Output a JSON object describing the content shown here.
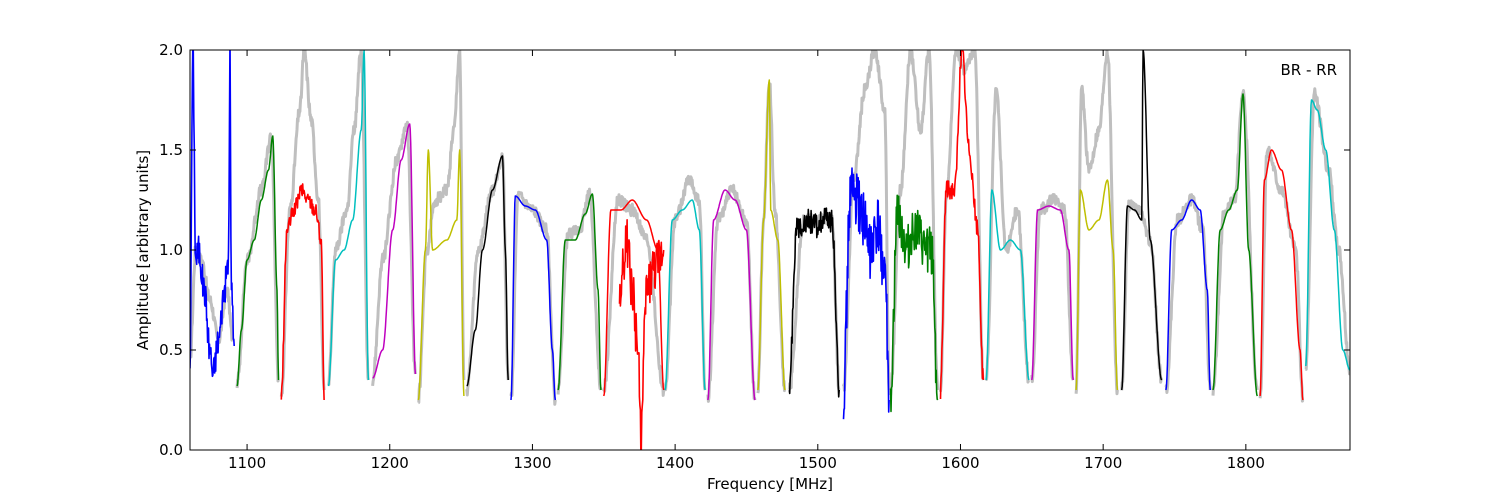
{
  "chart_data": {
    "type": "line",
    "title": "",
    "xlabel": "Frequency [MHz]",
    "ylabel": "Amplitude [arbitrary units]",
    "xlim": [
      1060,
      1873
    ],
    "ylim": [
      0.0,
      2.0
    ],
    "xticks": [
      1100,
      1200,
      1300,
      1400,
      1500,
      1600,
      1700,
      1800
    ],
    "xtick_labels": [
      "1100",
      "1200",
      "1300",
      "1400",
      "1500",
      "1600",
      "1700",
      "1800"
    ],
    "yticks": [
      0.0,
      0.5,
      1.0,
      1.5,
      2.0
    ],
    "ytick_labels": [
      "0.0",
      "0.5",
      "1.0",
      "1.5",
      "2.0"
    ],
    "grid": false,
    "legend_text": "BR - RR",
    "legend_position": "top-right",
    "gray_color": "#bfbfbf",
    "series_colors": [
      "#0000ff",
      "#008000",
      "#ff0000",
      "#00bfbf",
      "#bf00bf",
      "#bfbf00",
      "#000000"
    ],
    "gray_series": [
      {
        "x": [
          1060,
          1064,
          1068,
          1074,
          1080,
          1086,
          1090
        ],
        "y": [
          0.45,
          1.0,
          0.95,
          0.75,
          0.55,
          0.8,
          0.55
        ]
      },
      {
        "x": [
          1093,
          1100,
          1110,
          1117,
          1122
        ],
        "y": [
          0.33,
          0.95,
          1.3,
          1.57,
          0.35
        ]
      },
      {
        "x": [
          1124,
          1130,
          1137,
          1140,
          1145,
          1150,
          1154
        ],
        "y": [
          0.27,
          1.2,
          1.7,
          2.0,
          1.65,
          1.25,
          0.3
        ]
      },
      {
        "x": [
          1157,
          1162,
          1170,
          1175,
          1180,
          1185
        ],
        "y": [
          0.32,
          1.0,
          1.2,
          1.6,
          2.0,
          0.35
        ]
      },
      {
        "x": [
          1188,
          1195,
          1205,
          1212,
          1218
        ],
        "y": [
          0.35,
          0.95,
          1.45,
          1.63,
          0.38
        ]
      },
      {
        "x": [
          1220,
          1226,
          1232,
          1240,
          1245,
          1249,
          1252
        ],
        "y": [
          0.25,
          1.0,
          1.25,
          1.3,
          1.6,
          2.0,
          0.35
        ]
      },
      {
        "x": [
          1254,
          1262,
          1272,
          1279,
          1283
        ],
        "y": [
          0.3,
          1.0,
          1.3,
          1.47,
          0.35
        ]
      },
      {
        "x": [
          1285,
          1290,
          1300,
          1310,
          1316
        ],
        "y": [
          0.25,
          1.27,
          1.2,
          1.1,
          0.25
        ]
      },
      {
        "x": [
          1318,
          1325,
          1333,
          1340,
          1348
        ],
        "y": [
          0.3,
          1.08,
          1.1,
          1.28,
          0.3
        ]
      },
      {
        "x": [
          1350,
          1360,
          1370,
          1380,
          1392
        ],
        "y": [
          0.3,
          1.25,
          1.2,
          1.05,
          0.3
        ]
      },
      {
        "x": [
          1393,
          1400,
          1410,
          1417,
          1421
        ],
        "y": [
          0.3,
          1.15,
          1.35,
          1.25,
          0.3
        ]
      },
      {
        "x": [
          1423,
          1430,
          1440,
          1450,
          1456
        ],
        "y": [
          0.25,
          1.15,
          1.3,
          1.15,
          0.25
        ]
      },
      {
        "x": [
          1458,
          1462,
          1466,
          1470,
          1477
        ],
        "y": [
          0.3,
          1.15,
          1.85,
          1.2,
          0.3
        ]
      },
      {
        "x": [
          1480,
          1490,
          1500,
          1510,
          1515
        ],
        "y": [
          0.3,
          1.15,
          1.15,
          1.15,
          0.3
        ]
      },
      {
        "x": [
          1518,
          1525,
          1533,
          1540,
          1547,
          1550
        ],
        "y": [
          0.3,
          1.35,
          1.8,
          2.0,
          1.7,
          0.3
        ]
      },
      {
        "x": [
          1551,
          1558,
          1565,
          1572,
          1578,
          1584
        ],
        "y": [
          0.3,
          1.3,
          2.0,
          1.6,
          2.0,
          0.3
        ]
      },
      {
        "x": [
          1586,
          1590,
          1597,
          1603,
          1610,
          1616
        ],
        "y": [
          0.3,
          1.25,
          2.0,
          1.9,
          2.0,
          0.35
        ]
      },
      {
        "x": [
          1618,
          1625,
          1632,
          1640,
          1648
        ],
        "y": [
          0.35,
          1.8,
          1.0,
          1.2,
          0.35
        ]
      },
      {
        "x": [
          1650,
          1656,
          1665,
          1673,
          1679
        ],
        "y": [
          0.35,
          1.2,
          1.25,
          1.2,
          0.35
        ]
      },
      {
        "x": [
          1681,
          1685,
          1690,
          1697,
          1703,
          1710
        ],
        "y": [
          0.3,
          1.8,
          1.4,
          1.6,
          2.0,
          0.3
        ]
      },
      {
        "x": [
          1713,
          1718,
          1725,
          1733,
          1741
        ],
        "y": [
          0.3,
          1.22,
          1.2,
          1.05,
          0.35
        ]
      },
      {
        "x": [
          1744,
          1752,
          1762,
          1770,
          1775
        ],
        "y": [
          0.3,
          1.15,
          1.25,
          1.1,
          0.3
        ]
      },
      {
        "x": [
          1777,
          1785,
          1792,
          1798,
          1808
        ],
        "y": [
          0.3,
          1.2,
          1.25,
          1.78,
          0.3
        ]
      },
      {
        "x": [
          1810,
          1815,
          1825,
          1835,
          1840
        ],
        "y": [
          0.27,
          1.5,
          1.3,
          1.0,
          0.25
        ]
      },
      {
        "x": [
          1842,
          1848,
          1858,
          1865,
          1873
        ],
        "y": [
          0.4,
          1.78,
          1.4,
          1.0,
          0.4
        ]
      }
    ],
    "series": [
      {
        "color": "#0000ff",
        "noise": 0.08,
        "x": [
          1060,
          1062,
          1064,
          1066,
          1070,
          1074,
          1076,
          1080,
          1084,
          1087,
          1088,
          1089,
          1091
        ],
        "y": [
          0.45,
          2.0,
          0.95,
          1.0,
          0.8,
          0.5,
          0.38,
          0.55,
          0.8,
          0.95,
          2.0,
          0.8,
          0.52
        ]
      },
      {
        "color": "#008000",
        "noise": 0.0,
        "x": [
          1093,
          1096,
          1100,
          1105,
          1110,
          1115,
          1118,
          1121,
          1122
        ],
        "y": [
          0.32,
          0.6,
          0.95,
          1.05,
          1.25,
          1.4,
          1.57,
          0.8,
          0.35
        ]
      },
      {
        "color": "#ff0000",
        "noise": 0.04,
        "x": [
          1124,
          1128,
          1133,
          1138,
          1143,
          1148,
          1152,
          1154
        ],
        "y": [
          0.27,
          1.1,
          1.2,
          1.3,
          1.25,
          1.2,
          1.05,
          0.25
        ]
      },
      {
        "color": "#00bfbf",
        "noise": 0.0,
        "x": [
          1157,
          1162,
          1168,
          1174,
          1180,
          1182,
          1185
        ],
        "y": [
          0.32,
          0.95,
          1.0,
          1.15,
          1.6,
          2.0,
          0.35
        ]
      },
      {
        "color": "#bf00bf",
        "noise": 0.0,
        "x": [
          1188,
          1195,
          1202,
          1208,
          1214,
          1218
        ],
        "y": [
          0.36,
          0.5,
          1.1,
          1.45,
          1.63,
          0.38
        ]
      },
      {
        "color": "#bfbf00",
        "noise": 0.0,
        "x": [
          1220,
          1225,
          1227,
          1230,
          1240,
          1247,
          1249,
          1252
        ],
        "y": [
          0.25,
          1.0,
          1.5,
          1.0,
          1.05,
          1.15,
          1.5,
          0.27
        ]
      },
      {
        "color": "#000000",
        "noise": 0.0,
        "x": [
          1254,
          1260,
          1265,
          1272,
          1279,
          1281,
          1283
        ],
        "y": [
          0.32,
          0.6,
          1.0,
          1.3,
          1.47,
          1.0,
          0.35
        ]
      },
      {
        "color": "#0000ff",
        "noise": 0.0,
        "x": [
          1285,
          1288,
          1295,
          1302,
          1310,
          1314,
          1316
        ],
        "y": [
          0.25,
          1.27,
          1.22,
          1.2,
          1.05,
          0.5,
          0.25
        ]
      },
      {
        "color": "#008000",
        "noise": 0.0,
        "x": [
          1318,
          1323,
          1330,
          1337,
          1342,
          1346,
          1348
        ],
        "y": [
          0.3,
          1.05,
          1.05,
          1.18,
          1.28,
          0.8,
          0.3
        ]
      },
      {
        "color": "#ff0000",
        "noise": 0.0,
        "x": [
          1350,
          1355,
          1362,
          1370,
          1380,
          1388,
          1392
        ],
        "y": [
          0.27,
          1.2,
          1.2,
          1.25,
          1.15,
          1.0,
          0.3
        ]
      },
      {
        "color": "#ff0000",
        "noise": 0.12,
        "x": [
          1361,
          1366,
          1370,
          1374,
          1376,
          1380,
          1385,
          1392
        ],
        "y": [
          0.75,
          1.05,
          0.8,
          0.5,
          0.08,
          0.8,
          0.9,
          1.0
        ]
      },
      {
        "color": "#00bfbf",
        "noise": 0.0,
        "x": [
          1393,
          1398,
          1405,
          1412,
          1417,
          1421
        ],
        "y": [
          0.3,
          1.15,
          1.2,
          1.25,
          1.1,
          0.3
        ]
      },
      {
        "color": "#bf00bf",
        "noise": 0.0,
        "x": [
          1423,
          1427,
          1435,
          1442,
          1450,
          1456
        ],
        "y": [
          0.25,
          1.15,
          1.3,
          1.25,
          1.1,
          0.25
        ]
      },
      {
        "color": "#bfbf00",
        "noise": 0.0,
        "x": [
          1458,
          1462,
          1466,
          1467,
          1472,
          1477
        ],
        "y": [
          0.3,
          1.15,
          1.85,
          1.2,
          1.05,
          0.3
        ]
      },
      {
        "color": "#000000",
        "noise": 0.06,
        "x": [
          1480,
          1485,
          1492,
          1500,
          1505,
          1510,
          1515
        ],
        "y": [
          0.3,
          1.1,
          1.15,
          1.12,
          1.15,
          1.15,
          0.3
        ]
      },
      {
        "color": "#0000ff",
        "noise": 0.15,
        "x": [
          1518,
          1523,
          1530,
          1537,
          1542,
          1547,
          1550
        ],
        "y": [
          0.3,
          1.3,
          1.2,
          1.0,
          1.1,
          0.9,
          0.25
        ]
      },
      {
        "color": "#008000",
        "noise": 0.12,
        "x": [
          1551,
          1556,
          1562,
          1568,
          1575,
          1580,
          1584
        ],
        "y": [
          0.3,
          1.2,
          1.0,
          1.1,
          1.0,
          1.0,
          0.25
        ]
      },
      {
        "color": "#ff0000",
        "noise": 0.05,
        "x": [
          1586,
          1590,
          1596,
          1601,
          1606,
          1612,
          1616
        ],
        "y": [
          0.3,
          1.3,
          1.3,
          2.0,
          1.5,
          1.1,
          0.35
        ]
      },
      {
        "color": "#00bfbf",
        "noise": 0.0,
        "x": [
          1618,
          1622,
          1628,
          1635,
          1642,
          1648
        ],
        "y": [
          0.35,
          1.3,
          1.0,
          1.05,
          1.0,
          0.35
        ]
      },
      {
        "color": "#bf00bf",
        "noise": 0.0,
        "x": [
          1650,
          1654,
          1662,
          1670,
          1676,
          1679
        ],
        "y": [
          0.35,
          1.2,
          1.22,
          1.2,
          1.0,
          0.35
        ]
      },
      {
        "color": "#bfbf00",
        "noise": 0.0,
        "x": [
          1681,
          1684,
          1690,
          1697,
          1703,
          1707,
          1710
        ],
        "y": [
          0.3,
          1.3,
          1.1,
          1.15,
          1.35,
          1.0,
          0.3
        ]
      },
      {
        "color": "#000000",
        "noise": 0.0,
        "x": [
          1713,
          1717,
          1722,
          1727,
          1728,
          1733,
          1741
        ],
        "y": [
          0.3,
          1.22,
          1.2,
          1.15,
          2.0,
          1.05,
          0.35
        ]
      },
      {
        "color": "#0000ff",
        "noise": 0.0,
        "x": [
          1744,
          1748,
          1755,
          1762,
          1768,
          1773,
          1775
        ],
        "y": [
          0.3,
          1.1,
          1.15,
          1.25,
          1.2,
          0.8,
          0.3
        ]
      },
      {
        "color": "#008000",
        "noise": 0.0,
        "x": [
          1777,
          1782,
          1788,
          1794,
          1798,
          1802,
          1808
        ],
        "y": [
          0.3,
          1.1,
          1.2,
          1.3,
          1.78,
          1.0,
          0.27
        ]
      },
      {
        "color": "#ff0000",
        "noise": 0.0,
        "x": [
          1810,
          1813,
          1818,
          1825,
          1832,
          1838,
          1840
        ],
        "y": [
          0.27,
          1.35,
          1.5,
          1.4,
          1.1,
          0.5,
          0.25
        ]
      },
      {
        "color": "#00bfbf",
        "noise": 0.0,
        "x": [
          1842,
          1846,
          1850,
          1856,
          1862,
          1868,
          1873
        ],
        "y": [
          0.42,
          1.75,
          1.7,
          1.5,
          1.1,
          0.5,
          0.4
        ]
      }
    ]
  }
}
